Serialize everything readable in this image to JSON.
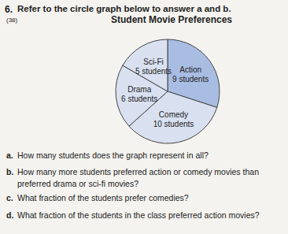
{
  "problem": {
    "number": "6.",
    "prompt": "Refer to the circle graph below to answer a and b.",
    "lesson": "(38)",
    "questions": [
      {
        "letter": "a.",
        "lines": [
          "How many students does the graph represent in all?"
        ]
      },
      {
        "letter": "b.",
        "lines": [
          "How many more students preferred action or comedy movies than",
          "preferred drama or sci-fi movies?"
        ]
      },
      {
        "letter": "c.",
        "lines": [
          "What fraction of the students prefer comedies?"
        ]
      },
      {
        "letter": "d.",
        "lines": [
          "What fraction of the students in the class preferred action movies?"
        ]
      }
    ]
  },
  "chart_data": {
    "type": "pie",
    "title": "Student Movie Preferences",
    "categories": [
      "Action",
      "Comedy",
      "Drama",
      "Sci-Fi"
    ],
    "values": [
      9,
      10,
      6,
      5
    ],
    "value_labels": [
      "9 students",
      "10 students",
      "6 students",
      "5 students"
    ],
    "colors": [
      "#a9bde3",
      "#d9e1f1",
      "#d9e1f1",
      "#d9e1f1"
    ],
    "data_labels": true
  }
}
